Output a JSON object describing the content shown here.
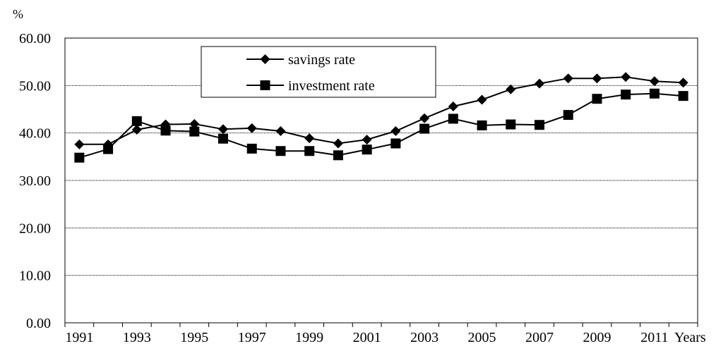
{
  "chart_data": {
    "type": "line",
    "ylabel": "%",
    "xlabel": "Years",
    "ylim": [
      0,
      60
    ],
    "yticks": [
      "0.00",
      "10.00",
      "20.00",
      "30.00",
      "40.00",
      "50.00",
      "60.00"
    ],
    "x": [
      1991,
      1992,
      1993,
      1994,
      1995,
      1996,
      1997,
      1998,
      1999,
      2000,
      2001,
      2002,
      2003,
      2004,
      2005,
      2006,
      2007,
      2008,
      2009,
      2010,
      2011,
      2012
    ],
    "xtick_labels": [
      "1991",
      "1993",
      "1995",
      "1997",
      "1999",
      "2001",
      "2003",
      "2005",
      "2007",
      "2009",
      "2011"
    ],
    "grid": "horizontal",
    "legend_position": "top-center",
    "series": [
      {
        "name": "savings rate",
        "marker": "diamond",
        "color": "#000000",
        "values": [
          37.6,
          37.6,
          40.7,
          41.8,
          41.9,
          40.8,
          41.0,
          40.4,
          38.9,
          37.8,
          38.6,
          40.4,
          43.1,
          45.6,
          47.0,
          49.2,
          50.4,
          51.5,
          51.5,
          51.8,
          50.9,
          50.6
        ]
      },
      {
        "name": "investment rate",
        "marker": "square",
        "color": "#000000",
        "values": [
          34.8,
          36.6,
          42.5,
          40.5,
          40.3,
          38.8,
          36.7,
          36.2,
          36.2,
          35.3,
          36.5,
          37.8,
          40.9,
          43.0,
          41.6,
          41.8,
          41.7,
          43.8,
          47.2,
          48.1,
          48.3,
          47.8
        ]
      }
    ]
  }
}
